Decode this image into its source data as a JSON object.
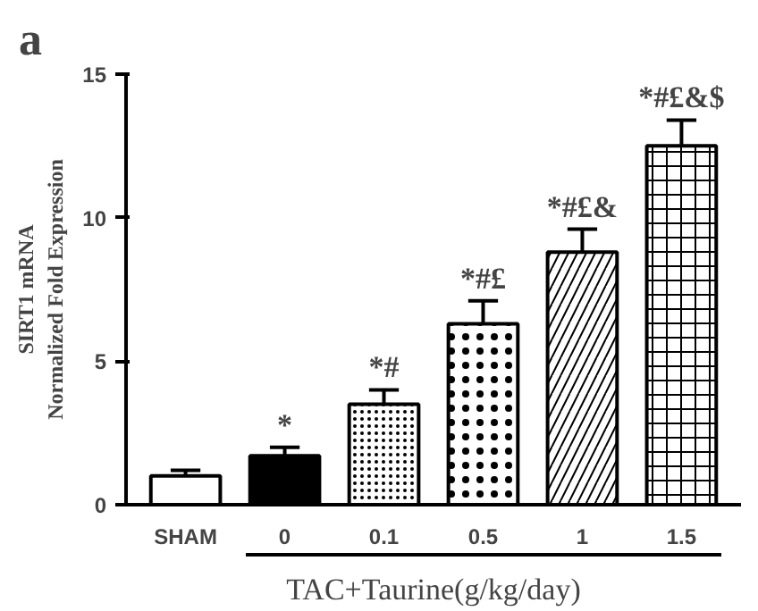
{
  "chart_data": {
    "type": "bar",
    "title": "a",
    "ylabel": "SIRT1 mRNA\nNormalized Fold Expression",
    "xlabel": "TAC+Taurine(g/kg/day)",
    "categories": [
      "SHAM",
      "0",
      "0.1",
      "0.5",
      "1",
      "1.5"
    ],
    "values": [
      1.0,
      1.7,
      3.5,
      6.3,
      8.8,
      12.5
    ],
    "errors": [
      0.2,
      0.3,
      0.5,
      0.8,
      0.8,
      0.9
    ],
    "colors": [
      "#ffffff",
      "#000000",
      "#ffffff",
      "#ffffff",
      "#ffffff",
      "#ffffff"
    ],
    "ylim": [
      0,
      15
    ],
    "yticks": [
      0,
      5,
      10,
      15
    ],
    "grid": false,
    "annotations": [
      "*",
      "*#",
      "*#£",
      "*#£&",
      "*#£&$"
    ]
  }
}
